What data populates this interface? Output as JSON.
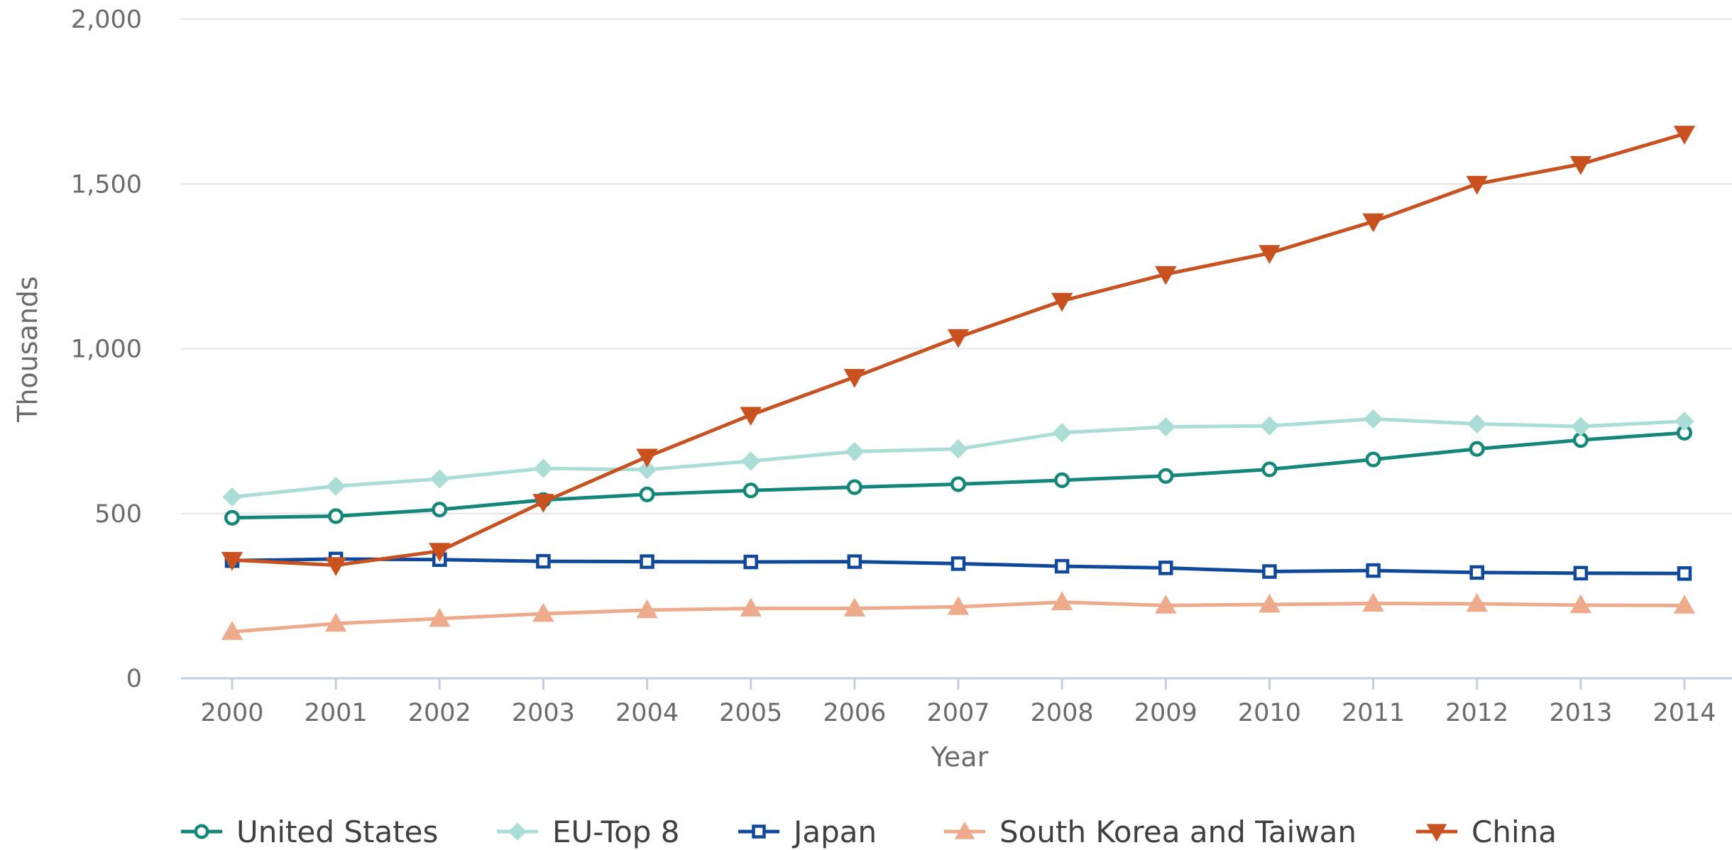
{
  "chart_data": {
    "type": "line",
    "title": "",
    "xlabel": "Year",
    "ylabel": "Thousands",
    "x": [
      "2000",
      "2001",
      "2002",
      "2003",
      "2004",
      "2005",
      "2006",
      "2007",
      "2008",
      "2009",
      "2010",
      "2011",
      "2012",
      "2013",
      "2014"
    ],
    "ylim": [
      0,
      2000
    ],
    "yticks": [
      0,
      500,
      1000,
      1500,
      2000
    ],
    "ytick_labels": [
      "0",
      "500",
      "1,000",
      "1,500",
      "2,000"
    ],
    "grid": true,
    "legend_position": "bottom",
    "series": [
      {
        "name": "United States",
        "color": "#14877a",
        "marker": "circle-open",
        "values": [
          487,
          492,
          512,
          541,
          558,
          570,
          580,
          589,
          601,
          614,
          634,
          664,
          696,
          723,
          745
        ]
      },
      {
        "name": "EU-Top 8",
        "color": "#a9ddd6",
        "marker": "diamond",
        "values": [
          550,
          583,
          605,
          637,
          633,
          659,
          688,
          696,
          745,
          763,
          766,
          787,
          772,
          764,
          780
        ]
      },
      {
        "name": "Japan",
        "color": "#10499c",
        "marker": "square-open",
        "values": [
          357,
          362,
          360,
          355,
          354,
          353,
          354,
          348,
          340,
          335,
          324,
          327,
          321,
          319,
          318
        ]
      },
      {
        "name": "South Korea and Taiwan",
        "color": "#eeab8c",
        "marker": "triangle-up",
        "values": [
          141,
          166,
          181,
          196,
          207,
          212,
          212,
          217,
          231,
          221,
          224,
          227,
          226,
          222,
          221
        ]
      },
      {
        "name": "China",
        "color": "#c9511f",
        "marker": "triangle-down",
        "values": [
          359,
          343,
          386,
          535,
          672,
          799,
          914,
          1035,
          1145,
          1226,
          1290,
          1386,
          1500,
          1560,
          1652
        ]
      }
    ]
  }
}
